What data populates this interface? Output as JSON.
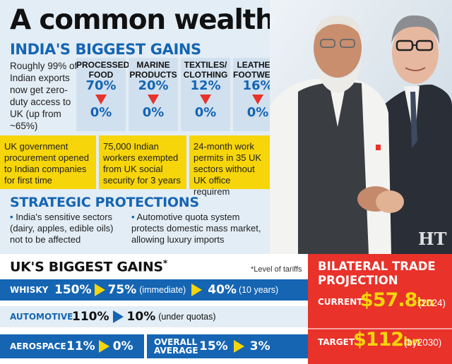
{
  "headline": "A common wealth pact",
  "india": {
    "title": "INDIA'S BIGGEST GAINS",
    "lead": "Roughly 99% of Indian exports now get zero-duty access to UK (up from ~65%)",
    "columns": [
      {
        "name_line1": "PROCESSED",
        "name_line2": "FOOD",
        "from": "70%",
        "to": "0%"
      },
      {
        "name_line1": "MARINE",
        "name_line2": "PRODUCTS",
        "from": "20%",
        "to": "0%"
      },
      {
        "name_line1": "TEXTILES/",
        "name_line2": "CLOTHING",
        "from": "12%",
        "to": "0%"
      },
      {
        "name_line1": "LEATHER/",
        "name_line2": "FOOTWEAR",
        "from": "16%",
        "to": "0%"
      }
    ],
    "boxes": [
      "UK government procurement opened to Indian companies for first time",
      "75,000 Indian workers exempted from UK social security for 3 years",
      "24-month work permits in 35 UK sectors without UK office requirem"
    ]
  },
  "strategic": {
    "title": "STRATEGIC PROTECTIONS",
    "bullets": [
      "India's sensitive sectors (dairy, apples, edible oils) not to be affected",
      "Automotive quota system protects domestic mass market, allowing luxury imports"
    ]
  },
  "photo": {
    "watermark": "HT"
  },
  "uk": {
    "title": "UK'S BIGGEST GAINS",
    "title_mark": "*",
    "note": "*Level of tariffs",
    "whisky": {
      "label": "WHISKY",
      "v1": "150%",
      "v2": "75%",
      "n2": "(immediate)",
      "v3": "40%",
      "n3": "(10 years)"
    },
    "automotive": {
      "label": "AUTOMOTIVE",
      "v1": "110%",
      "v2": "10%",
      "n2": "(under quotas)"
    },
    "aerospace": {
      "label": "AEROSPACE",
      "v1": "11%",
      "v2": "0%"
    },
    "overall": {
      "label_line1": "OVERALL",
      "label_line2": "AVERAGE",
      "v1": "15%",
      "v2": "3%"
    }
  },
  "bilateral": {
    "title_line1": "BILATERAL TRADE",
    "title_line2": "PROJECTION",
    "current_label": "CURRENT",
    "current_value": "$57.8",
    "current_unit": "bn",
    "current_year": "(2024)",
    "target_label": "TARGET",
    "target_value": "$112",
    "target_unit": "bn",
    "target_year": "(by2030)"
  },
  "colors": {
    "blue": "#1565b3",
    "yellow": "#f6d50a",
    "red": "#e8322a",
    "panel": "#e3edf5"
  }
}
